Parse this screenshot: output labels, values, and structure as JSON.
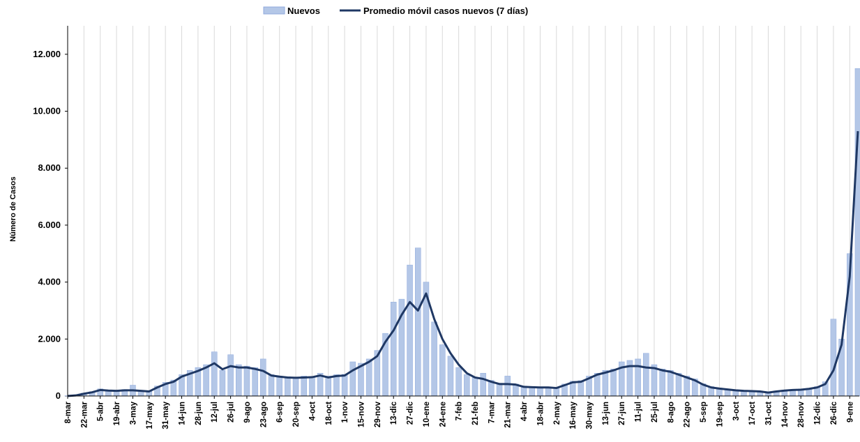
{
  "chart_data": {
    "type": "bar-line",
    "ylabel": "Número de Casos",
    "legend": "top",
    "grid": true,
    "ylim": [
      0,
      13000
    ],
    "yticks": [
      {
        "value": 0,
        "label": "0"
      },
      {
        "value": 2000,
        "label": "2.000"
      },
      {
        "value": 4000,
        "label": "4.000"
      },
      {
        "value": 6000,
        "label": "6.000"
      },
      {
        "value": 8000,
        "label": "8.000"
      },
      {
        "value": 10000,
        "label": "10.000"
      },
      {
        "value": 12000,
        "label": "12.000"
      }
    ],
    "categories": [
      "8-mar",
      null,
      "22-mar",
      null,
      "5-abr",
      null,
      "19-abr",
      null,
      "3-may",
      null,
      "17-may",
      null,
      "31-may",
      null,
      "14-jun",
      null,
      "28-jun",
      null,
      "12-jul",
      null,
      "26-jul",
      null,
      "9-ago",
      null,
      "23-ago",
      null,
      "6-sep",
      null,
      "20-sep",
      null,
      "4-oct",
      null,
      "18-oct",
      null,
      "1-nov",
      null,
      "15-nov",
      null,
      "29-nov",
      null,
      "13-dic",
      null,
      "27-dic",
      null,
      "10-ene",
      null,
      "24-ene",
      null,
      "7-feb",
      null,
      "21-feb",
      null,
      "7-mar",
      null,
      "21-mar",
      null,
      "4-abr",
      null,
      "18-abr",
      null,
      "2-may",
      null,
      "16-may",
      null,
      "30-may",
      null,
      "13-jun",
      null,
      "27-jun",
      null,
      "11-jul",
      null,
      "25-jul",
      null,
      "8-ago",
      null,
      "22-ago",
      null,
      "5-sep",
      null,
      "19-sep",
      null,
      "3-oct",
      null,
      "17-oct",
      null,
      "31-oct",
      null,
      "14-nov",
      null,
      "28-nov",
      null,
      "12-dic",
      null,
      "26-dic",
      null,
      "9-ene",
      null
    ],
    "series": [
      {
        "name": "Nuevos",
        "type": "bar",
        "color": "#b4c7e7",
        "values": [
          10,
          40,
          100,
          150,
          250,
          200,
          190,
          230,
          380,
          200,
          170,
          350,
          480,
          560,
          750,
          900,
          1000,
          1100,
          1550,
          900,
          1450,
          1100,
          1050,
          1000,
          1300,
          750,
          700,
          680,
          650,
          700,
          680,
          800,
          700,
          750,
          760,
          1200,
          1150,
          1300,
          1600,
          2200,
          3300,
          3400,
          4600,
          5200,
          4000,
          2600,
          1800,
          1400,
          1000,
          750,
          650,
          800,
          550,
          450,
          700,
          420,
          350,
          330,
          320,
          310,
          300,
          420,
          520,
          540,
          700,
          800,
          900,
          950,
          1200,
          1250,
          1300,
          1500,
          1100,
          950,
          900,
          800,
          700,
          600,
          430,
          330,
          280,
          250,
          210,
          200,
          190,
          170,
          130,
          180,
          210,
          230,
          250,
          270,
          330,
          500,
          2700,
          2000,
          5000,
          11500
        ]
      },
      {
        "name": "Promedio móvil casos nuevos (7 días)",
        "type": "line",
        "color": "#1f3864",
        "values": [
          0,
          20,
          80,
          130,
          210,
          190,
          180,
          200,
          200,
          180,
          160,
          300,
          420,
          500,
          680,
          780,
          880,
          1000,
          1150,
          940,
          1050,
          1000,
          1000,
          950,
          880,
          720,
          680,
          650,
          640,
          650,
          660,
          720,
          650,
          700,
          720,
          900,
          1050,
          1200,
          1400,
          1900,
          2300,
          2850,
          3300,
          3000,
          3600,
          2700,
          2000,
          1500,
          1100,
          800,
          650,
          600,
          500,
          420,
          420,
          400,
          320,
          310,
          300,
          300,
          280,
          380,
          480,
          500,
          620,
          750,
          820,
          900,
          1000,
          1050,
          1050,
          1000,
          980,
          900,
          850,
          750,
          650,
          550,
          400,
          300,
          260,
          230,
          200,
          180,
          170,
          160,
          120,
          160,
          190,
          210,
          220,
          250,
          300,
          420,
          900,
          1800,
          4200,
          9300
        ]
      }
    ]
  }
}
